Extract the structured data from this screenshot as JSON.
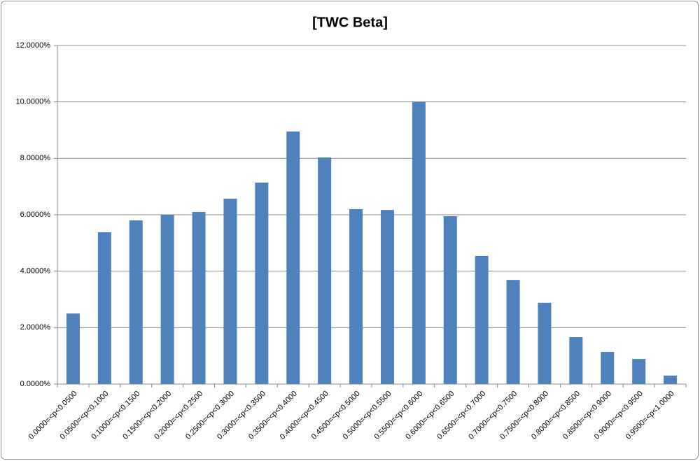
{
  "chart_data": {
    "type": "bar",
    "title": "[TWC Beta]",
    "categories": [
      "0.0000=<p<0.0500",
      "0.0500=<p<0.1000",
      "0.1000=<p<0.1500",
      "0.1500=<p<0.2000",
      "0.2000=<p<0.2500",
      "0.2500=<p<0.3000",
      "0.3000=<p<0.3500",
      "0.3500=<p<0.4000",
      "0.4000=<p<0.4500",
      "0.4500=<p<0.5000",
      "0.5000=<p<0.5500",
      "0.5500=<p<0.6000",
      "0.6000=<p<0.6500",
      "0.6500=<p<0.7000",
      "0.7000=<p<0.7500",
      "0.7500=<p<0.8000",
      "0.8000=<p<0.8500",
      "0.8500=<p<0.9000",
      "0.9000=<p<0.9500",
      "0.9500=<p<1.0000"
    ],
    "values": [
      2.5,
      5.38,
      5.8,
      6.0,
      6.1,
      6.57,
      7.14,
      8.95,
      8.03,
      6.2,
      6.17,
      10.0,
      5.95,
      4.54,
      3.69,
      2.88,
      1.66,
      1.14,
      0.89,
      0.3
    ],
    "color": "#4f81bd",
    "ylim": [
      0,
      12
    ],
    "yticks": [
      {
        "value": 0,
        "label": "0.0000%"
      },
      {
        "value": 2,
        "label": "2.0000%"
      },
      {
        "value": 4,
        "label": "4.0000%"
      },
      {
        "value": 6,
        "label": "6.0000%"
      },
      {
        "value": 8,
        "label": "8.0000%"
      },
      {
        "value": 10,
        "label": "10.0000%"
      },
      {
        "value": 12,
        "label": "12.0000%"
      }
    ],
    "grid": true
  }
}
